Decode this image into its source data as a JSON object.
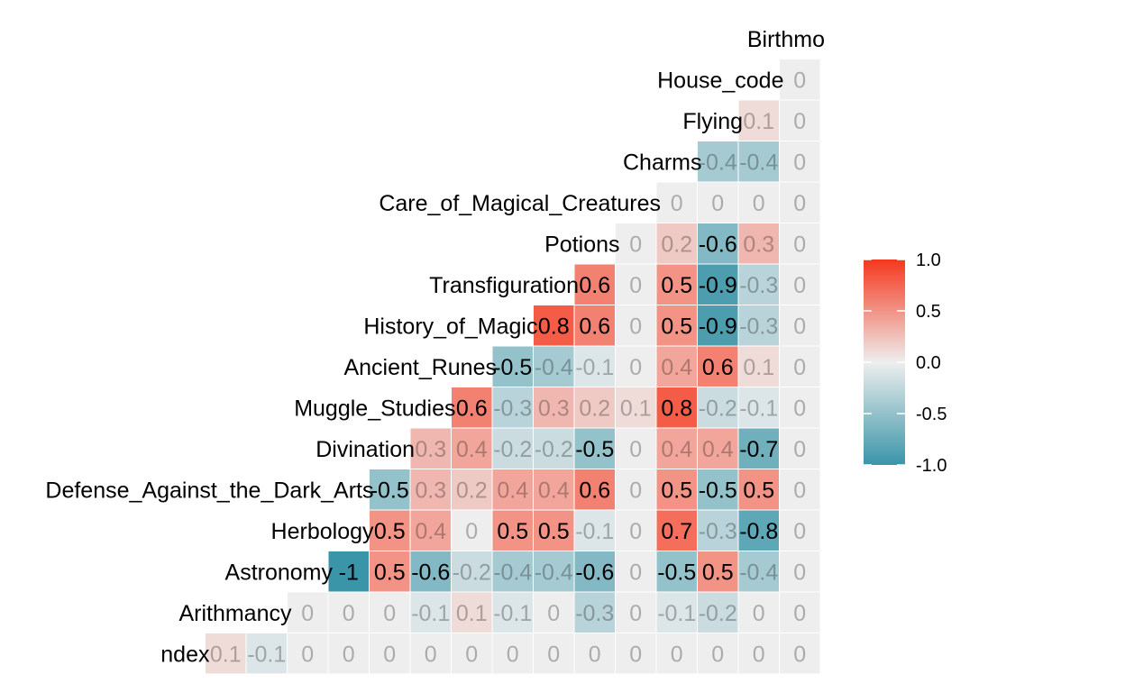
{
  "chart_data": {
    "type": "heatmap",
    "variables": [
      "ndex",
      "Arithmancy",
      "Astronomy",
      "Herbology",
      "Defense_Against_the_Dark_Arts",
      "Divination",
      "Muggle_Studies",
      "Ancient_Runes",
      "History_of_Magic",
      "Transfiguration",
      "Potions",
      "Care_of_Magical_Creatures",
      "Charms",
      "Flying",
      "House_code",
      "Birthmo"
    ],
    "rows": [
      {
        "label": "ndex",
        "values": [
          0.1,
          -0.1,
          0,
          0,
          0,
          0,
          0,
          0,
          0,
          0,
          0,
          0,
          0,
          0,
          0
        ]
      },
      {
        "label": "Arithmancy",
        "values": [
          0,
          0,
          0,
          -0.1,
          0.1,
          -0.1,
          0,
          -0.3,
          0,
          -0.1,
          -0.2,
          0,
          0
        ]
      },
      {
        "label": "Astronomy",
        "values": [
          -1,
          0.5,
          -0.6,
          -0.2,
          -0.4,
          -0.4,
          -0.6,
          0,
          -0.5,
          0.5,
          -0.4,
          0
        ]
      },
      {
        "label": "Herbology",
        "values": [
          0.5,
          0.4,
          0,
          0.5,
          0.5,
          -0.1,
          0,
          0.7,
          -0.3,
          -0.8,
          0
        ]
      },
      {
        "label": "Defense_Against_the_Dark_Arts",
        "values": [
          -0.5,
          0.3,
          0.2,
          0.4,
          0.4,
          0.6,
          0,
          0.5,
          -0.5,
          0.5,
          0
        ]
      },
      {
        "label": "Divination",
        "values": [
          0.3,
          0.4,
          -0.2,
          -0.2,
          -0.5,
          0,
          0.4,
          0.4,
          -0.7,
          0
        ]
      },
      {
        "label": "Muggle_Studies",
        "values": [
          0.6,
          -0.3,
          0.3,
          0.2,
          0.1,
          0.8,
          -0.2,
          -0.1,
          0
        ]
      },
      {
        "label": "Ancient_Runes",
        "values": [
          -0.5,
          -0.4,
          -0.1,
          0,
          0.4,
          0.6,
          0.1,
          0
        ]
      },
      {
        "label": "History_of_Magic",
        "values": [
          0.8,
          0.6,
          0,
          0.5,
          -0.9,
          -0.3,
          0
        ]
      },
      {
        "label": "Transfiguration",
        "values": [
          0.6,
          0,
          0.5,
          -0.9,
          -0.3,
          0
        ]
      },
      {
        "label": "Potions",
        "values": [
          0,
          0.2,
          -0.6,
          0.3,
          0
        ]
      },
      {
        "label": "Care_of_Magical_Creatures",
        "values": [
          0,
          0,
          0,
          0
        ]
      },
      {
        "label": "Charms",
        "values": [
          -0.4,
          -0.4,
          0
        ]
      },
      {
        "label": "Flying",
        "values": [
          0.1,
          0
        ]
      },
      {
        "label": "House_code",
        "values": [
          0
        ]
      },
      {
        "label": "Birthmo",
        "values": []
      }
    ],
    "color_scale": {
      "low": "#3a95a8",
      "mid": "#eeeeee",
      "high": "#f5381e",
      "domain": [
        -1,
        1
      ]
    },
    "legend": {
      "ticks": [
        "1.0",
        "0.5",
        "0.0",
        "-0.5",
        "-1.0"
      ],
      "placement": "right"
    },
    "grid": false,
    "title": "",
    "xlabel": "",
    "ylabel": ""
  }
}
